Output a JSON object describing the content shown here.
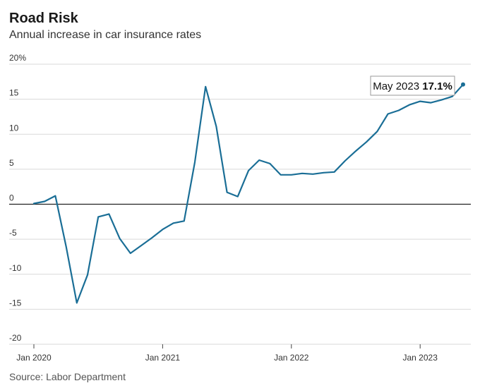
{
  "header": {
    "title": "Road Risk",
    "subtitle": "Annual increase in car insurance rates"
  },
  "footer": {
    "source": "Source: Labor Department"
  },
  "chart_data": {
    "type": "line",
    "title": "Road Risk",
    "subtitle": "Annual increase in car insurance rates",
    "xlabel": "",
    "ylabel": "",
    "ylim": [
      -20,
      20
    ],
    "yticks": [
      20,
      15,
      10,
      5,
      0,
      -5,
      -10,
      -15,
      -20
    ],
    "ytick_labels": [
      "20%",
      "15",
      "10",
      "5",
      "0",
      "-5",
      "-10",
      "-15",
      "-20"
    ],
    "xtick_labels": [
      "Jan 2020",
      "Jan 2021",
      "Jan 2022",
      "Jan 2023"
    ],
    "xtick_dates": [
      "2020-01",
      "2021-01",
      "2022-01",
      "2023-01"
    ],
    "grid": true,
    "line_color": "#1a6e96",
    "series": [
      {
        "x": [
          "2020-01",
          "2020-02",
          "2020-03",
          "2020-04",
          "2020-05",
          "2020-06",
          "2020-07",
          "2020-08",
          "2020-09",
          "2020-10",
          "2020-11",
          "2020-12",
          "2021-01",
          "2021-02",
          "2021-03",
          "2021-04",
          "2021-05",
          "2021-06",
          "2021-07",
          "2021-08",
          "2021-09",
          "2021-10",
          "2021-11",
          "2021-12",
          "2022-01",
          "2022-02",
          "2022-03",
          "2022-04",
          "2022-05",
          "2022-06",
          "2022-07",
          "2022-08",
          "2022-09",
          "2022-10",
          "2022-11",
          "2022-12",
          "2023-01",
          "2023-02",
          "2023-03",
          "2023-04",
          "2023-05"
        ],
        "values": [
          0.1,
          0.4,
          1.2,
          -6.0,
          -14.1,
          -10.1,
          -1.8,
          -1.4,
          -4.9,
          -7.0,
          -5.9,
          -4.8,
          -3.6,
          -2.7,
          -2.4,
          6.0,
          16.8,
          11.1,
          1.7,
          1.1,
          4.8,
          6.3,
          5.8,
          4.2,
          4.2,
          4.4,
          4.3,
          4.5,
          4.6,
          6.2,
          7.6,
          8.9,
          10.4,
          12.9,
          13.4,
          14.2,
          14.7,
          14.5,
          14.9,
          15.4,
          17.1
        ]
      }
    ],
    "annotation": {
      "label": "May 2023",
      "value": "17.1%"
    }
  }
}
